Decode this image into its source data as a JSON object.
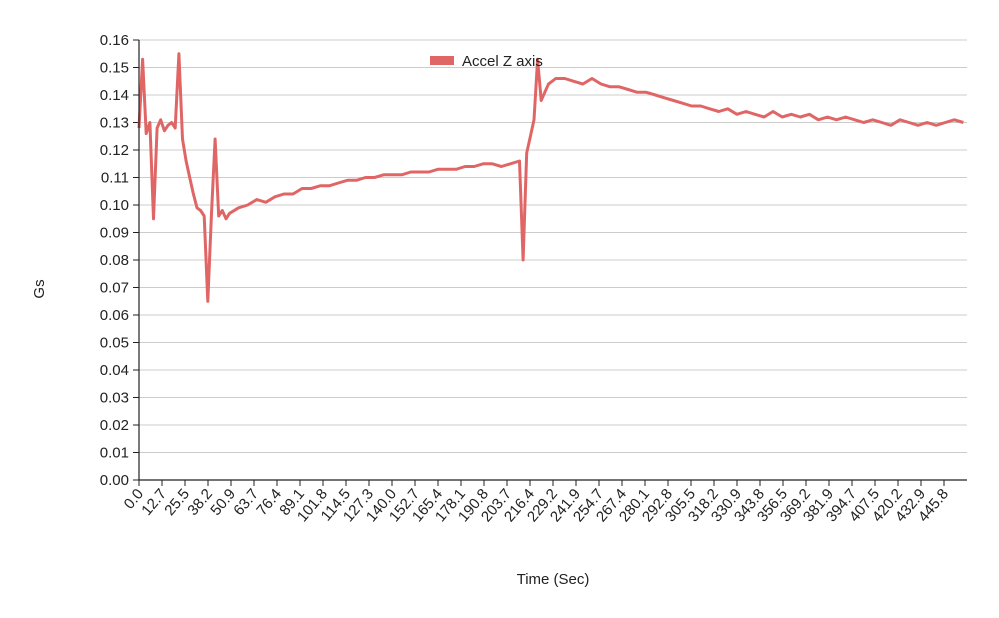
{
  "chart_data": {
    "type": "line",
    "xlabel": "Time (Sec)",
    "ylabel": "Gs",
    "ylim": [
      0,
      0.16
    ],
    "y_ticks": [
      "0.00",
      "0.01",
      "0.02",
      "0.03",
      "0.04",
      "0.05",
      "0.06",
      "0.07",
      "0.08",
      "0.09",
      "0.10",
      "0.11",
      "0.12",
      "0.13",
      "0.14",
      "0.15",
      "0.16"
    ],
    "x_ticks": [
      "0.0",
      "12.7",
      "25.5",
      "38.2",
      "50.9",
      "63.7",
      "76.4",
      "89.1",
      "101.8",
      "114.5",
      "127.3",
      "140.0",
      "152.7",
      "165.4",
      "178.1",
      "190.8",
      "203.7",
      "216.4",
      "229.2",
      "241.9",
      "254.7",
      "267.4",
      "280.1",
      "292.8",
      "305.5",
      "318.2",
      "330.9",
      "343.8",
      "356.5",
      "369.2",
      "381.9",
      "394.7",
      "407.5",
      "420.2",
      "432.9",
      "445.8"
    ],
    "xlim": [
      0,
      457
    ],
    "grid": true,
    "legend_position": "top-center",
    "series": [
      {
        "name": "Accel Z axis",
        "color": "#e06666",
        "x": [
          0,
          2,
          4,
          6,
          8,
          10,
          12,
          14,
          16,
          18,
          20,
          22,
          24,
          26,
          28,
          30,
          32,
          34,
          36,
          38,
          40,
          42,
          44,
          46,
          48,
          50,
          55,
          60,
          65,
          70,
          75,
          80,
          85,
          90,
          95,
          100,
          105,
          110,
          115,
          120,
          125,
          130,
          135,
          140,
          145,
          150,
          155,
          160,
          165,
          170,
          175,
          180,
          185,
          190,
          195,
          200,
          205,
          210,
          212,
          214,
          216,
          218,
          220,
          222,
          224,
          226,
          228,
          230,
          235,
          240,
          245,
          250,
          255,
          260,
          265,
          270,
          275,
          280,
          285,
          290,
          295,
          300,
          305,
          310,
          315,
          320,
          325,
          330,
          335,
          340,
          345,
          350,
          355,
          360,
          365,
          370,
          375,
          380,
          385,
          390,
          395,
          400,
          405,
          410,
          415,
          420,
          425,
          430,
          435,
          440,
          445,
          450,
          455
        ],
        "y": [
          0.128,
          0.153,
          0.126,
          0.13,
          0.095,
          0.128,
          0.131,
          0.127,
          0.129,
          0.13,
          0.128,
          0.155,
          0.124,
          0.116,
          0.11,
          0.104,
          0.099,
          0.098,
          0.096,
          0.065,
          0.097,
          0.124,
          0.096,
          0.098,
          0.095,
          0.097,
          0.099,
          0.1,
          0.102,
          0.101,
          0.103,
          0.104,
          0.104,
          0.106,
          0.106,
          0.107,
          0.107,
          0.108,
          0.109,
          0.109,
          0.11,
          0.11,
          0.111,
          0.111,
          0.111,
          0.112,
          0.112,
          0.112,
          0.113,
          0.113,
          0.113,
          0.114,
          0.114,
          0.115,
          0.115,
          0.114,
          0.115,
          0.116,
          0.08,
          0.119,
          0.125,
          0.131,
          0.153,
          0.138,
          0.141,
          0.144,
          0.145,
          0.146,
          0.146,
          0.145,
          0.144,
          0.146,
          0.144,
          0.143,
          0.143,
          0.142,
          0.141,
          0.141,
          0.14,
          0.139,
          0.138,
          0.137,
          0.136,
          0.136,
          0.135,
          0.134,
          0.135,
          0.133,
          0.134,
          0.133,
          0.132,
          0.134,
          0.132,
          0.133,
          0.132,
          0.133,
          0.131,
          0.132,
          0.131,
          0.132,
          0.131,
          0.13,
          0.131,
          0.13,
          0.129,
          0.131,
          0.13,
          0.129,
          0.13,
          0.129,
          0.13,
          0.131,
          0.13
        ]
      }
    ]
  }
}
